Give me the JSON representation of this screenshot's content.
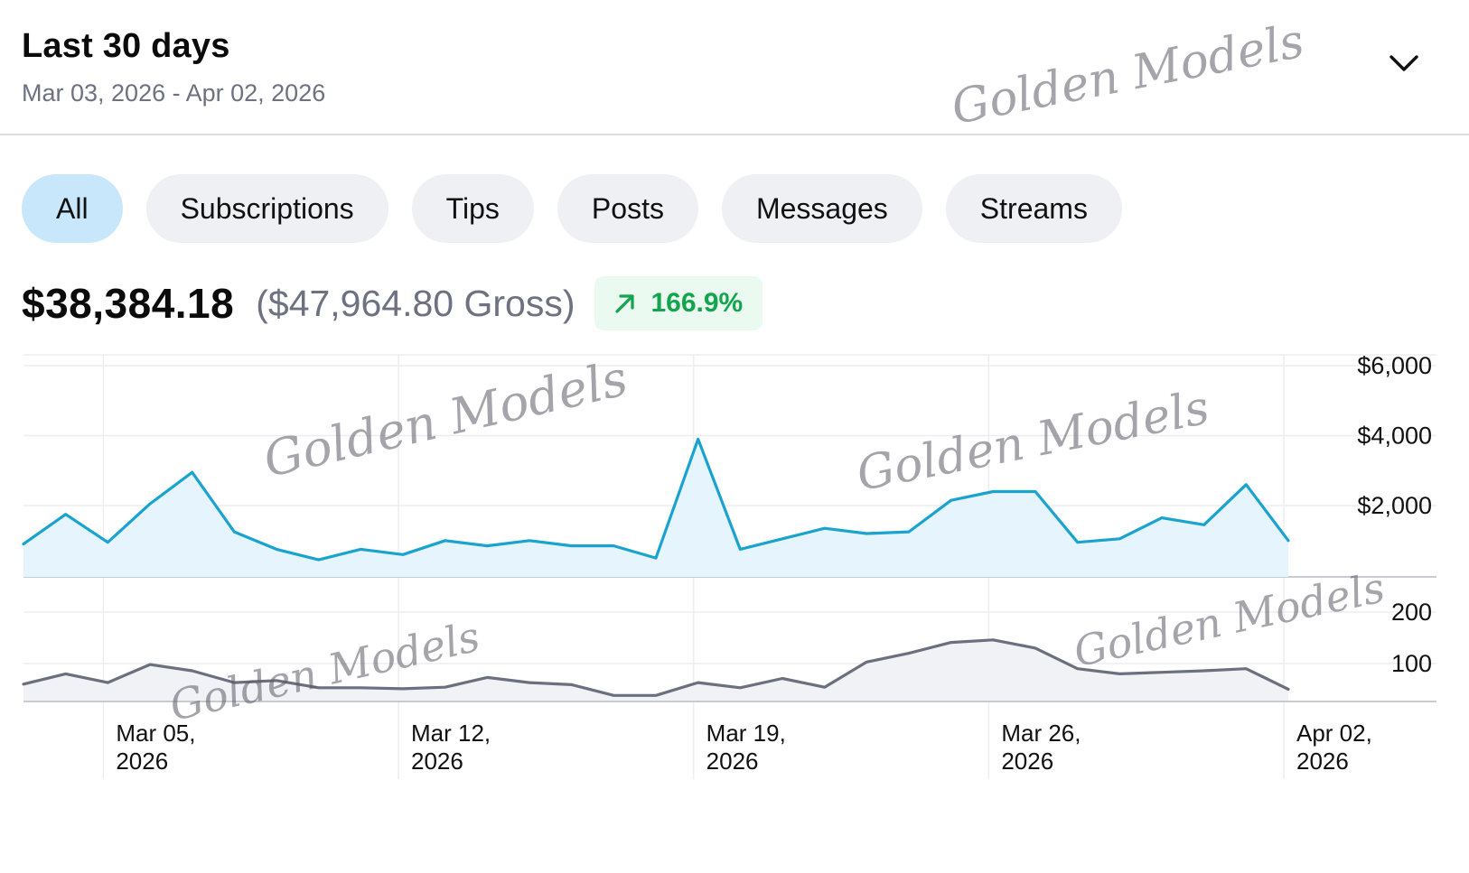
{
  "header": {
    "title": "Last 30 days",
    "date_range": "Mar 03, 2026 - Apr 02, 2026",
    "expand_icon": "chevron-down-icon"
  },
  "tabs": [
    {
      "label": "All",
      "active": true
    },
    {
      "label": "Subscriptions",
      "active": false
    },
    {
      "label": "Tips",
      "active": false
    },
    {
      "label": "Posts",
      "active": false
    },
    {
      "label": "Messages",
      "active": false
    },
    {
      "label": "Streams",
      "active": false
    }
  ],
  "totals": {
    "net": "$38,384.18",
    "gross": "($47,964.80 Gross)",
    "growth": "166.9%",
    "growth_icon": "arrow-up-right-icon"
  },
  "watermark": "Golden Models",
  "colors": {
    "earnings_line": "#1aa3cf",
    "earnings_fill": "#e6f5fd",
    "count_line": "#6b6f7e",
    "count_fill": "#f1f2f5",
    "growth_text": "#14a44d",
    "growth_bg": "#eafaf0",
    "active_tab": "#c8e7fb"
  },
  "chart_data": [
    {
      "type": "area",
      "x": [
        "2026-03-03",
        "2026-03-04",
        "2026-03-05",
        "2026-03-06",
        "2026-03-07",
        "2026-03-08",
        "2026-03-09",
        "2026-03-10",
        "2026-03-11",
        "2026-03-12",
        "2026-03-13",
        "2026-03-14",
        "2026-03-15",
        "2026-03-16",
        "2026-03-17",
        "2026-03-18",
        "2026-03-19",
        "2026-03-20",
        "2026-03-21",
        "2026-03-22",
        "2026-03-23",
        "2026-03-24",
        "2026-03-25",
        "2026-03-26",
        "2026-03-27",
        "2026-03-28",
        "2026-03-29",
        "2026-03-30",
        "2026-03-31",
        "2026-04-01",
        "2026-04-02"
      ],
      "values": [
        900,
        1750,
        950,
        2050,
        2950,
        1250,
        750,
        450,
        750,
        600,
        1000,
        850,
        1000,
        850,
        850,
        500,
        3900,
        750,
        1050,
        1350,
        1200,
        1250,
        2150,
        2400,
        2400,
        950,
        1050,
        1650,
        1450,
        2600,
        1000
      ],
      "yticks": [
        "$2,000",
        "$4,000",
        "$6,000"
      ],
      "ytick_values": [
        2000,
        4000,
        6000
      ],
      "ylim": [
        0,
        6000
      ]
    },
    {
      "type": "area",
      "x": [
        "2026-03-03",
        "2026-03-04",
        "2026-03-05",
        "2026-03-06",
        "2026-03-07",
        "2026-03-08",
        "2026-03-09",
        "2026-03-10",
        "2026-03-11",
        "2026-03-12",
        "2026-03-13",
        "2026-03-14",
        "2026-03-15",
        "2026-03-16",
        "2026-03-17",
        "2026-03-18",
        "2026-03-19",
        "2026-03-20",
        "2026-03-21",
        "2026-03-22",
        "2026-03-23",
        "2026-03-24",
        "2026-03-25",
        "2026-03-26",
        "2026-03-27",
        "2026-03-28",
        "2026-03-29",
        "2026-03-30",
        "2026-03-31",
        "2026-04-01",
        "2026-04-02"
      ],
      "values": [
        60,
        80,
        63,
        98,
        86,
        63,
        67,
        53,
        53,
        51,
        54,
        73,
        63,
        59,
        38,
        38,
        63,
        53,
        71,
        54,
        103,
        120,
        141,
        146,
        130,
        90,
        80,
        83,
        86,
        90,
        50
      ],
      "yticks": [
        "100",
        "200"
      ],
      "ytick_values": [
        100,
        200
      ],
      "ylim": [
        0,
        200
      ]
    }
  ],
  "x_axis": {
    "tick_labels": [
      {
        "date": "2026-03-05",
        "line1": "Mar 05,",
        "line2": "2026"
      },
      {
        "date": "2026-03-12",
        "line1": "Mar 12,",
        "line2": "2026"
      },
      {
        "date": "2026-03-19",
        "line1": "Mar 19,",
        "line2": "2026"
      },
      {
        "date": "2026-03-26",
        "line1": "Mar 26,",
        "line2": "2026"
      },
      {
        "date": "2026-04-02",
        "line1": "Apr 02,",
        "line2": "2026"
      }
    ]
  }
}
